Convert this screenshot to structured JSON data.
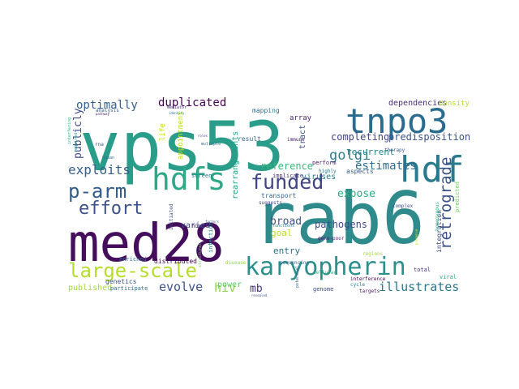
{
  "word_cloud": {
    "words": [
      {
        "text": "vps53",
        "color": "#2a9c8a"
      },
      {
        "text": "rab6",
        "color": "#2f8a8c"
      },
      {
        "text": "med28",
        "color": "#440e5c"
      },
      {
        "text": "tnpo3",
        "color": "#2a6c8e"
      },
      {
        "text": "hdf",
        "color": "#2a7a8e"
      },
      {
        "text": "hdfs",
        "color": "#2fa88a"
      },
      {
        "text": "karyopherin",
        "color": "#2b8f8c"
      },
      {
        "text": "large-scale",
        "color": "#b5dd2b"
      },
      {
        "text": "p-arm",
        "color": "#2f5c8c"
      },
      {
        "text": "funded",
        "color": "#414487"
      },
      {
        "text": "effort",
        "color": "#3b528b"
      },
      {
        "text": "exploits",
        "color": "#365e8d"
      },
      {
        "text": "golgi",
        "color": "#2f7f8d"
      },
      {
        "text": "retrograde",
        "color": "#3a538b"
      },
      {
        "text": "estimates",
        "color": "#2d6e8e"
      },
      {
        "text": "duplicated",
        "color": "#440154"
      },
      {
        "text": "optimally",
        "color": "#355f8d"
      },
      {
        "text": "publicly",
        "color": "#3e4a89"
      },
      {
        "text": "evolve",
        "color": "#3b528b"
      },
      {
        "text": "illustrates",
        "color": "#2a788e"
      },
      {
        "text": "hiv",
        "color": "#8fd744"
      },
      {
        "text": "completing",
        "color": "#404387"
      },
      {
        "text": "predisposition",
        "color": "#3b528b"
      },
      {
        "text": "recurrent",
        "color": "#25848e"
      },
      {
        "text": "expose",
        "color": "#29af7f"
      },
      {
        "text": "reference",
        "color": "#35b779"
      },
      {
        "text": "broad",
        "color": "#3b528b"
      },
      {
        "text": "pathogens",
        "color": "#3d4d8a"
      },
      {
        "text": "goal",
        "color": "#b8de29"
      },
      {
        "text": "entry",
        "color": "#2c728e"
      },
      {
        "text": "mb",
        "color": "#46327e"
      },
      {
        "text": "power",
        "color": "#5ec962"
      },
      {
        "text": "published",
        "color": "#a2da37"
      },
      {
        "text": "varies",
        "color": "#3e4989"
      },
      {
        "text": "viruses",
        "color": "#2a7b8e"
      },
      {
        "text": "rearrangements",
        "color": "#20a386"
      },
      {
        "text": "dependencies",
        "color": "#472d7b"
      },
      {
        "text": "density",
        "color": "#b4de2c"
      },
      {
        "text": "tract",
        "color": "#3a548c"
      },
      {
        "text": "array",
        "color": "#481f70"
      },
      {
        "text": "mapping",
        "color": "#2c718e"
      },
      {
        "text": "result",
        "color": "#31688e"
      },
      {
        "text": "appointment",
        "color": "#c0df25"
      },
      {
        "text": "life",
        "color": "#d2e21b"
      },
      {
        "text": "genetics",
        "color": "#3b528b"
      },
      {
        "text": "enriched",
        "color": "#31688e"
      },
      {
        "text": "distributed",
        "color": "#440154"
      },
      {
        "text": "transport",
        "color": "#31688e"
      },
      {
        "text": "implicate",
        "color": "#46307e"
      },
      {
        "text": "aspects",
        "color": "#38588c"
      },
      {
        "text": "screen",
        "color": "#2a788e"
      },
      {
        "text": "host",
        "color": "#443a83"
      },
      {
        "text": "infection",
        "color": "#26828e"
      },
      {
        "text": "initiated",
        "color": "#3b528b"
      },
      {
        "text": "structural",
        "color": "#7ad151"
      },
      {
        "text": "participate",
        "color": "#2f6c8e"
      },
      {
        "text": "disease",
        "color": "#8fd744"
      },
      {
        "text": "genome",
        "color": "#3e4989"
      },
      {
        "text": "sequencing",
        "color": "#33638d"
      },
      {
        "text": "perform",
        "color": "#481a6c"
      },
      {
        "text": "highly",
        "color": "#2c728e"
      },
      {
        "text": "suggests",
        "color": "#414487"
      },
      {
        "text": "gene-poor",
        "color": "#481c6e"
      },
      {
        "text": "functions",
        "color": "#25858e"
      },
      {
        "text": "interference",
        "color": "#440154"
      },
      {
        "text": "integration",
        "color": "#3f4788"
      },
      {
        "text": "homozygous",
        "color": "#29af7f"
      },
      {
        "text": "predicted",
        "color": "#6ccd5a"
      },
      {
        "text": "viral",
        "color": "#22a785"
      },
      {
        "text": "complex",
        "color": "#3e4c8a"
      },
      {
        "text": "total",
        "color": "#46327e"
      },
      {
        "text": "targets",
        "color": "#48186a"
      },
      {
        "text": "cycle",
        "color": "#2a788e"
      },
      {
        "text": "regions",
        "color": "#a5db36"
      },
      {
        "text": "immune",
        "color": "#482173"
      },
      {
        "text": "therapy",
        "color": "#3b528b"
      },
      {
        "text": "cellular",
        "color": "#2fb47c"
      },
      {
        "text": "potential",
        "color": "#34618d"
      },
      {
        "text": "rna",
        "color": "#3b528b"
      },
      {
        "text": "human",
        "color": "#2e6f8e"
      },
      {
        "text": "analysis",
        "color": "#355f8d"
      },
      {
        "text": "interfering",
        "color": "#27ad81"
      },
      {
        "text": "required",
        "color": "#228d8d"
      },
      {
        "text": "multiple",
        "color": "#31688e"
      },
      {
        "text": "factors",
        "color": "#3b528b"
      },
      {
        "text": "identify",
        "color": "#2c718e"
      },
      {
        "text": "pathway",
        "color": "#482475"
      },
      {
        "text": "mediator",
        "color": "#46337f"
      },
      {
        "text": "roles",
        "color": "#414487"
      },
      {
        "text": "revealed",
        "color": "#3b528b"
      },
      {
        "text": "presence",
        "color": "#c8e020"
      }
    ]
  }
}
